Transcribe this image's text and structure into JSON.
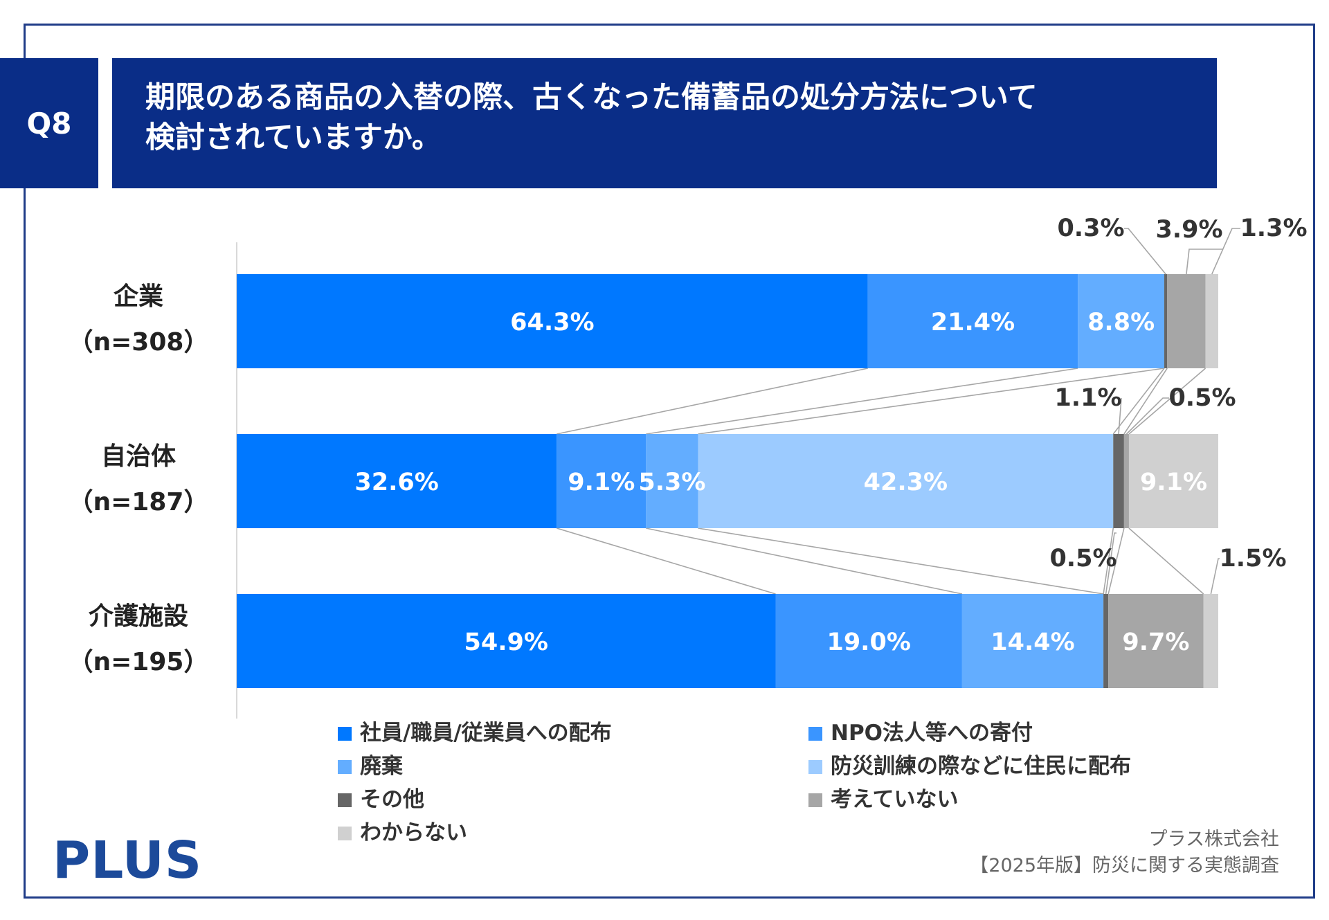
{
  "header": {
    "question_id": "Q8",
    "title_line1": "期限のある商品の入替の際、古くなった備蓄品の処分方法について",
    "title_line2": "検討されていますか。"
  },
  "colors": {
    "brand_navy": "#0a2d87",
    "series": [
      "#0078ff",
      "#3a95ff",
      "#63adff",
      "#9ccbff",
      "#666666",
      "#a6a6a6",
      "#d0d0d0"
    ]
  },
  "chart_data": {
    "type": "bar",
    "orientation": "horizontal",
    "stacked": true,
    "normalized": true,
    "xlim": [
      0,
      100
    ],
    "categories": [
      {
        "label": "企業",
        "n": "（n=308）"
      },
      {
        "label": "自治体",
        "n": "（n=187）"
      },
      {
        "label": "介護施設",
        "n": "（n=195）"
      }
    ],
    "series": [
      {
        "name": "社員/職員/従業員への配布",
        "values": [
          64.3,
          32.6,
          54.9
        ],
        "labels": [
          "64.3%",
          "32.6%",
          "54.9%"
        ]
      },
      {
        "name": "NPO法人等への寄付",
        "values": [
          21.4,
          9.1,
          19.0
        ],
        "labels": [
          "21.4%",
          "9.1%",
          "19.0%"
        ]
      },
      {
        "name": "廃棄",
        "values": [
          8.8,
          5.3,
          14.4
        ],
        "labels": [
          "8.8%",
          "5.3%",
          "14.4%"
        ]
      },
      {
        "name": "防災訓練の際などに住民に配布",
        "values": [
          0,
          42.3,
          0
        ],
        "labels": [
          "",
          "42.3%",
          ""
        ]
      },
      {
        "name": "その他",
        "values": [
          0.3,
          1.1,
          0.5
        ],
        "labels": [
          "0.3%",
          "1.1%",
          "0.5%"
        ]
      },
      {
        "name": "考えていない",
        "values": [
          3.9,
          0.5,
          9.7
        ],
        "labels": [
          "3.9%",
          "0.5%",
          "9.7%"
        ]
      },
      {
        "name": "わからない",
        "values": [
          1.3,
          9.1,
          1.5
        ],
        "labels": [
          "1.3%",
          "9.1%",
          "1.5%"
        ]
      }
    ]
  },
  "footer": {
    "logo": "PLUS",
    "source_line1": "プラス株式会社",
    "source_line2": "【2025年版】防災に関する実態調査"
  }
}
